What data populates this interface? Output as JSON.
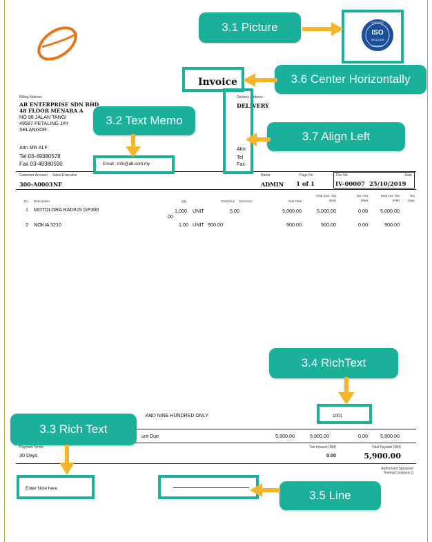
{
  "invoice": {
    "title": "Invoice",
    "billing_label": "Billing Address",
    "delivery_label": "Delivery Address",
    "company": "AB ENTERPRISE SDN BHD",
    "addr1": "48 FLOOR MENARA A",
    "addr2": "NO 98 JALAN TANGI",
    "addr3": "49587 PETALING JAY",
    "addr4": "SELANGOR",
    "attn": "Attn  MR ALF",
    "tel": "Tel   03-49380578",
    "fax": "Fax  03-49380590",
    "delivery_name": "DELIVERY",
    "del_attn": "Attn",
    "del_tel": "Tel",
    "del_fax": "Fax",
    "email": "Email :   info@ab.com.my",
    "hdr": {
      "customer_account": "Customer Account",
      "sales_executive": "Sales Executive",
      "name": "Name",
      "page_no": "Page No",
      "doc_no": "Doc No.",
      "date": "Date"
    },
    "vals": {
      "customer_account": "300-A0003",
      "sales_executive": "NF",
      "name": "ADMIN",
      "page_no": "1 of 1",
      "doc_no": "IV-00007",
      "date": "25/10/2019"
    },
    "cols": {
      "no": "No",
      "description": "Description",
      "qty": "Qty",
      "price": "Price/Unit",
      "discount": "Discount",
      "subtotal": "Sub Total",
      "excl1": "Total Excl. Tax",
      "excl2": "(RM)",
      "taxamt1": "Tax Amt",
      "taxamt2": "(RM)",
      "incl1": "Total Incl. Tax",
      "incl2": "(RM)",
      "rate1": "Tax",
      "rate2": "Rate"
    },
    "items": [
      {
        "no": "1",
        "desc": "MOTOLORA RADIUS GP300",
        "qty1": "1,000.",
        "qty2": "00",
        "unit": "UNIT",
        "price": "5.00",
        "subtotal": "5,000.00",
        "excl": "5,000.00",
        "tax": "0.00",
        "incl": "5,000.00"
      },
      {
        "no": "2",
        "desc": "NOKIA 3210",
        "qty1": "1.00",
        "qty2": "",
        "unit": "UNIT",
        "price": "900.00",
        "subtotal": "900.00",
        "excl": "900.00",
        "tax": "0.00",
        "incl": "900.00"
      }
    ],
    "amount_words": "AND NINE HUNDRED ONLY",
    "richtext_value": "1001",
    "amount_due_label": "unt Due",
    "totals": {
      "subtotal": "5,900.00",
      "excl": "5,900.00",
      "tax": "0.00",
      "incl": "5,900.00"
    },
    "payment_terms_label": "Payment Terms",
    "payment_terms": "30 Days",
    "tax_amount_label": "Tax Amount (RM)",
    "tax_amount": "0.00",
    "total_payable_label": "Total Payable (RM)",
    "total_payable": "5,900.00",
    "signature1": "Authorised Signature",
    "signature2": "Testing Company ()",
    "note": "Enter Note here"
  },
  "iso_badge": {
    "top_text": "CERTIFIED",
    "main": "ISO",
    "sub": "9001:2015",
    "bottom_text": "COMPANY"
  },
  "callouts": {
    "picture": "3.1 Picture",
    "center": "3.6 Center Horizontally",
    "text_memo": "3.2 Text Memo",
    "align_left": "3.7 Align Left",
    "richtext": "3.4 RichText",
    "rich_text": "3.3 Rich Text",
    "line": "3.5 Line"
  },
  "colors": {
    "accent": "#1ab09a",
    "arrow": "#f5b52b",
    "logo": "#e8751a",
    "iso_blue": "#1c4f9c"
  }
}
